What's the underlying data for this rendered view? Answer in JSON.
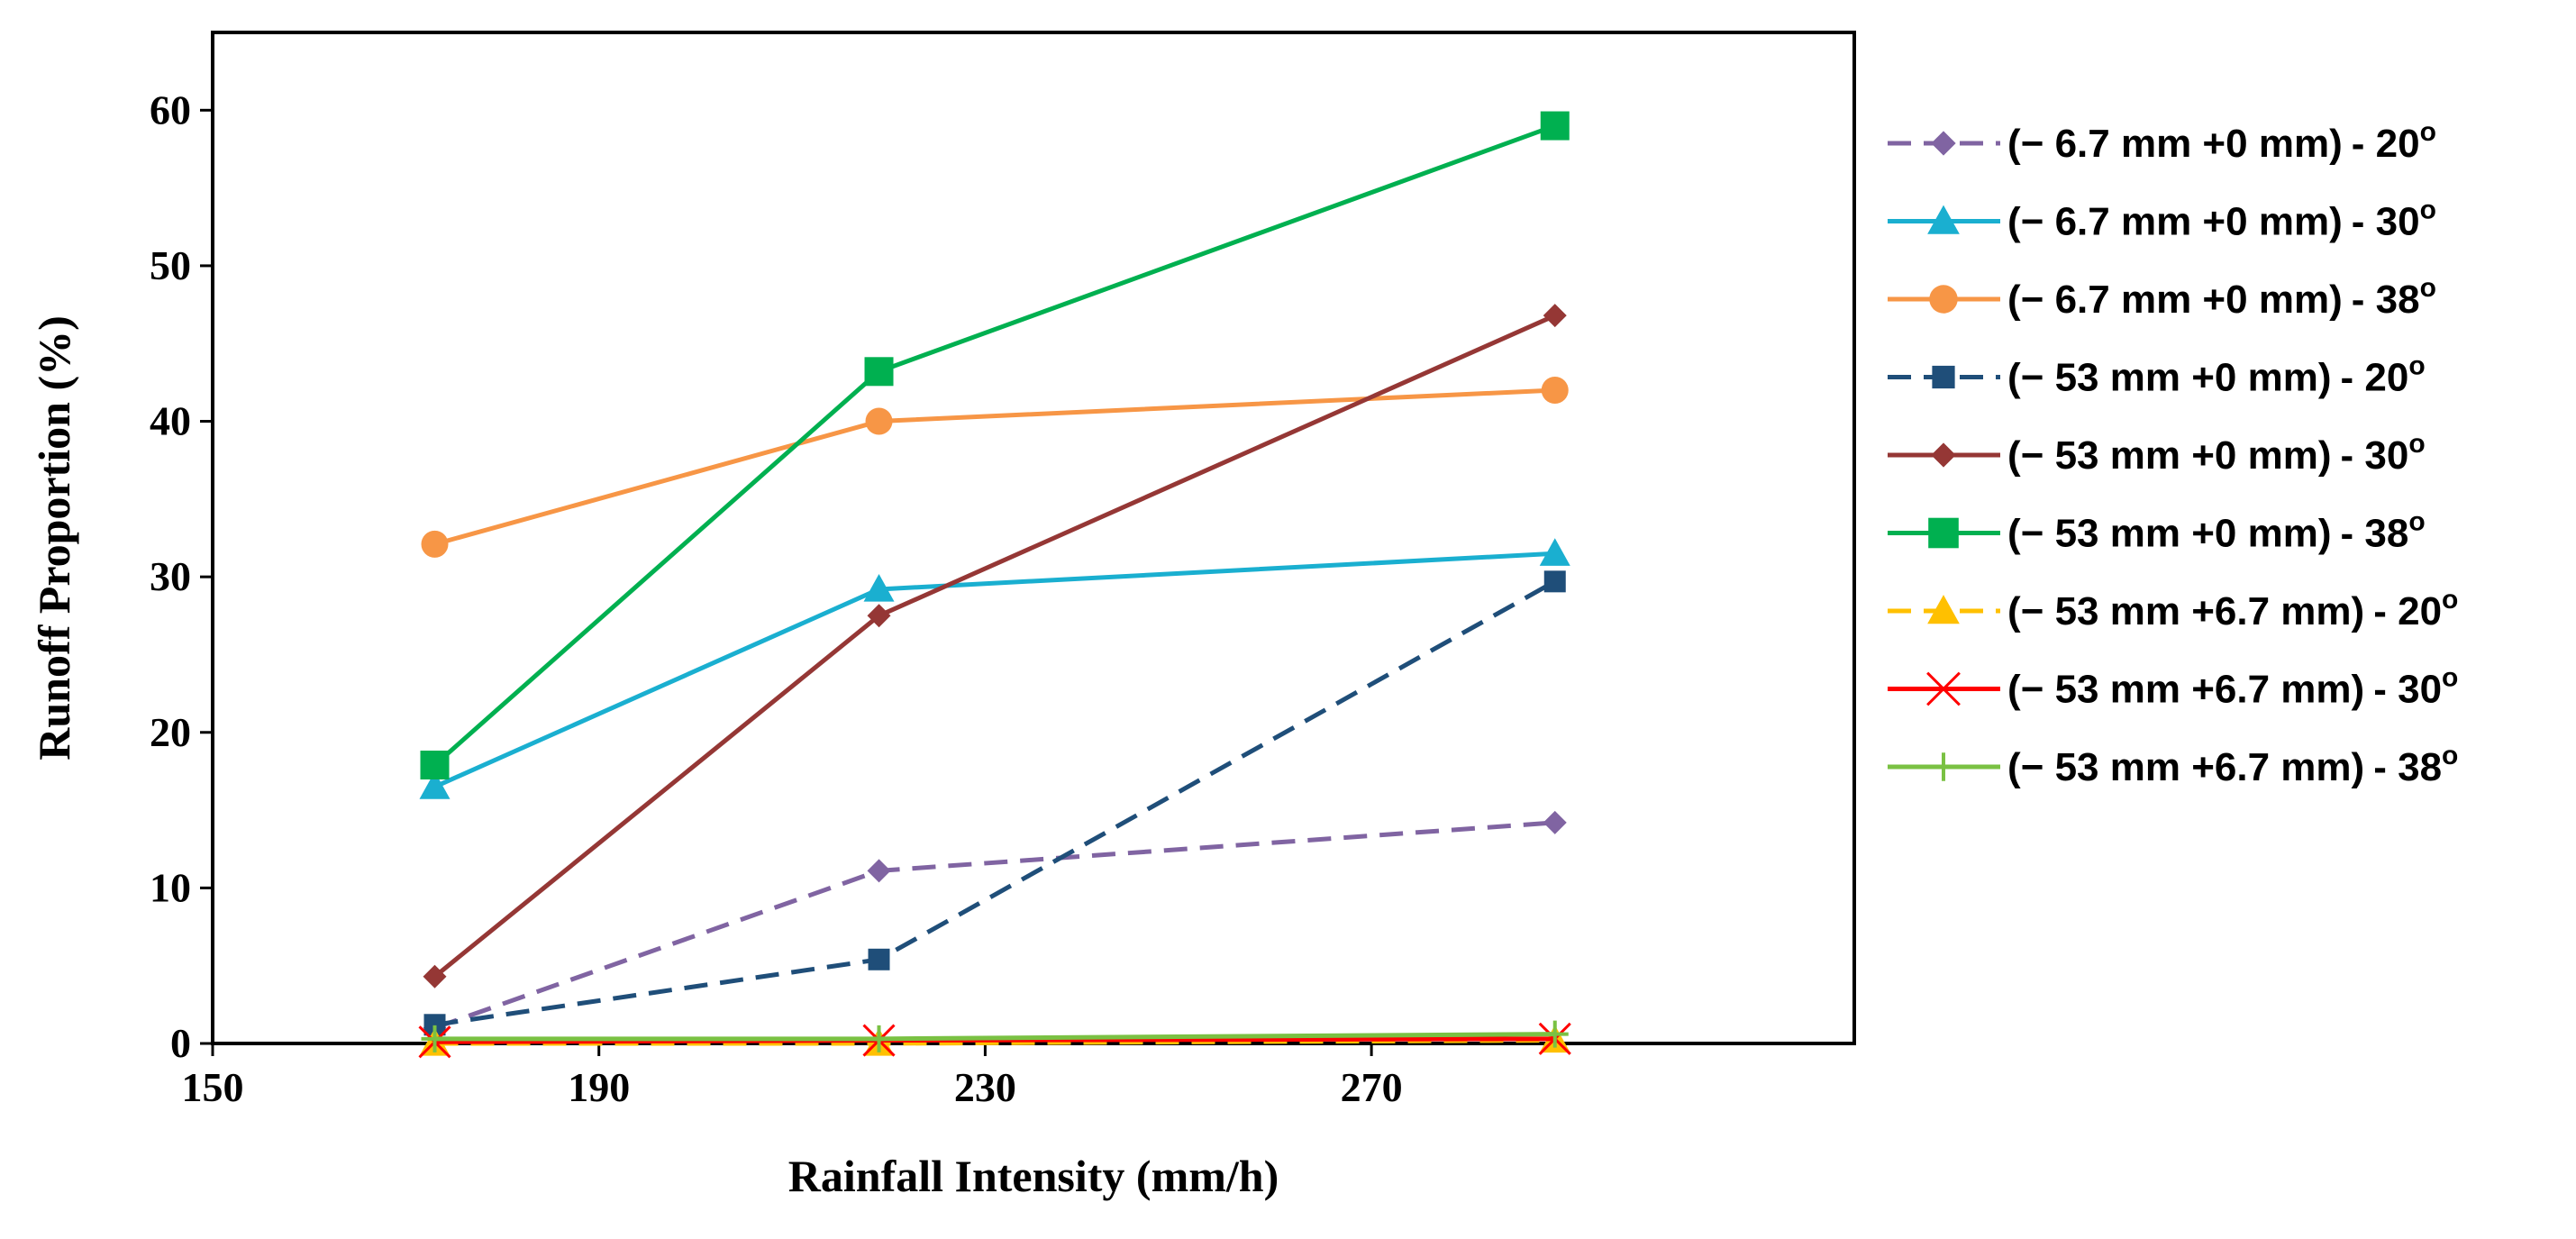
{
  "chart_data": {
    "type": "line",
    "title": "",
    "xlabel": "Rainfall Intensity (mm/h)",
    "ylabel": "Runoff Proportion (%)",
    "xlim": [
      150,
      320
    ],
    "ylim": [
      0,
      65
    ],
    "xticks": [
      150,
      190,
      230,
      270
    ],
    "yticks": [
      0,
      10,
      20,
      30,
      40,
      50,
      60
    ],
    "x": [
      173,
      219,
      289
    ],
    "grid": false,
    "legend_position": "right",
    "series": [
      {
        "name": "(− 6.7 mm +0 mm)",
        "angle": "20",
        "unit": "o",
        "color": "#8064a2",
        "dash": "dashed",
        "marker": "diamond",
        "values": [
          1.0,
          11.1,
          14.2
        ]
      },
      {
        "name": "(− 6.7 mm +0 mm)",
        "angle": "30",
        "unit": "o",
        "color": "#1aafd0",
        "dash": "solid",
        "marker": "triangle",
        "values": [
          16.5,
          29.2,
          31.5
        ]
      },
      {
        "name": "(− 6.7 mm +0 mm)",
        "angle": "38",
        "unit": "o",
        "color": "#f79646",
        "dash": "solid",
        "marker": "circle",
        "values": [
          32.1,
          40.0,
          42.0
        ]
      },
      {
        "name": "(− 53 mm +0 mm)",
        "angle": "20",
        "unit": "o",
        "color": "#1f4e79",
        "dash": "dashed",
        "marker": "square-small",
        "values": [
          1.2,
          5.4,
          29.7
        ]
      },
      {
        "name": "(− 53 mm +0 mm)",
        "angle": "30",
        "unit": "o",
        "color": "#953735",
        "dash": "solid",
        "marker": "diamond",
        "values": [
          4.3,
          27.5,
          46.8
        ]
      },
      {
        "name": "(− 53 mm +0 mm)",
        "angle": "38",
        "unit": "o",
        "color": "#00b050",
        "dash": "solid",
        "marker": "square",
        "values": [
          17.9,
          43.2,
          59.0
        ]
      },
      {
        "name": "(− 53 mm +6.7 mm)",
        "angle": "20",
        "unit": "o",
        "color": "#ffc000",
        "dash": "dashed",
        "marker": "triangle",
        "values": [
          0.0,
          0.0,
          0.2
        ]
      },
      {
        "name": "(− 53 mm +6.7 mm)",
        "angle": "30",
        "unit": "o",
        "color": "#ff0000",
        "dash": "solid",
        "marker": "x",
        "values": [
          0.1,
          0.2,
          0.3
        ]
      },
      {
        "name": "(− 53 mm +6.7 mm)",
        "angle": "38",
        "unit": "o",
        "color": "#7ac143",
        "dash": "solid",
        "marker": "plus",
        "values": [
          0.3,
          0.3,
          0.6
        ]
      }
    ]
  }
}
